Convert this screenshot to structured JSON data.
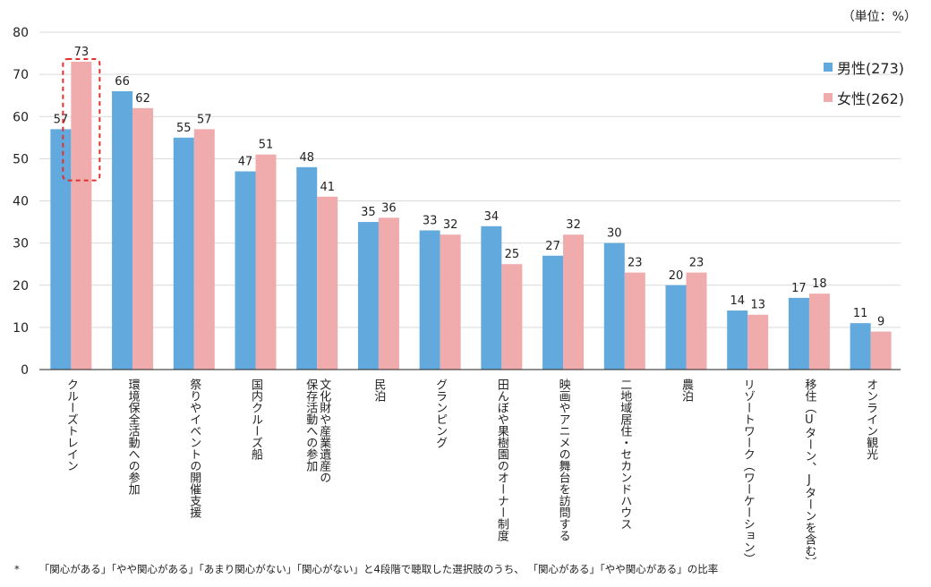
{
  "unit_label": "（単位：%）",
  "footnote": {
    "mark": "*",
    "text": "「関心がある」「やや関心がある」「あまり関心がない」「関心がない」と4段階で聴取した選択肢のうち、 「関心がある」「やや関心がある」の比率"
  },
  "colors": {
    "male": "#62a9dd",
    "female": "#f0abad",
    "highlight": "#e0332f",
    "grid": "#d9d9d9",
    "axis": "#222222"
  },
  "chart_data": {
    "type": "bar",
    "title": "",
    "xlabel": "",
    "ylabel": "",
    "ylim": [
      0,
      80
    ],
    "yticks": [
      0,
      10,
      20,
      30,
      40,
      50,
      60,
      70,
      80
    ],
    "grid": true,
    "legend_position": "top-right",
    "categories": [
      "クルーズトレイン",
      "環境保全活動への参加",
      "祭りやイベントの開催支援",
      "国内クルーズ船",
      "文化財や産業遺産の保存活動への参加",
      "民泊",
      "グランピング",
      "田んぼや果樹園のオーナー制度",
      "映画やアニメの舞台を訪問する",
      "二地域居住・セカンドハウス",
      "農泊",
      "リゾートワーク（ワーケーション）",
      "移住（Uターン、Jターンを含む）",
      "オンライン観光"
    ],
    "category_lines": [
      [
        "クルーズトレイン"
      ],
      [
        "環境保全活動への参加"
      ],
      [
        "祭りやイベントの開催支援"
      ],
      [
        "国内クルーズ船"
      ],
      [
        "文化財や産業遺産の",
        "保存活動への参加"
      ],
      [
        "民泊"
      ],
      [
        "グランピング"
      ],
      [
        "田んぼや果樹園のオーナー制度"
      ],
      [
        "映画やアニメの舞台を訪問する"
      ],
      [
        "二地域居住・セカンドハウス"
      ],
      [
        "農泊"
      ],
      [
        "リゾートワーク（ワーケーション）"
      ],
      [
        "移住（Uターン、Jターンを含む）"
      ],
      [
        "オンライン観光"
      ]
    ],
    "series": [
      {
        "name": "男性(273)",
        "values": [
          57,
          66,
          55,
          47,
          48,
          35,
          33,
          34,
          27,
          30,
          20,
          14,
          17,
          11
        ]
      },
      {
        "name": "女性(262)",
        "values": [
          73,
          62,
          57,
          51,
          41,
          36,
          32,
          25,
          32,
          23,
          23,
          13,
          18,
          9
        ]
      }
    ],
    "highlight": {
      "series": 1,
      "category": 0,
      "style": "dashed-box"
    }
  }
}
